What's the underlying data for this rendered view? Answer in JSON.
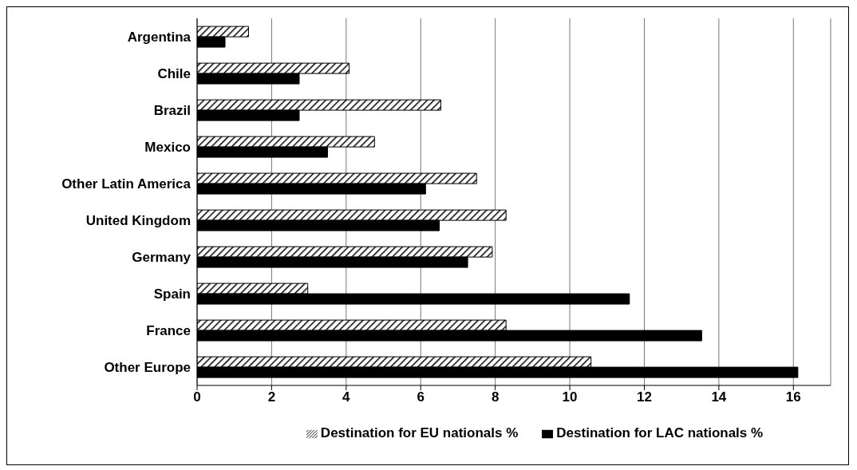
{
  "chart_data": {
    "type": "bar",
    "orientation": "horizontal",
    "categories": [
      "Argentina",
      "Chile",
      "Brazil",
      "Mexico",
      "Other Latin America",
      "United Kingdom",
      "Germany",
      "Spain",
      "France",
      "Other Europe"
    ],
    "series": [
      {
        "name": "Destination for LAC nationals %",
        "color": "#000000",
        "values": [
          0.75,
          2.74,
          2.74,
          3.5,
          6.13,
          6.5,
          7.26,
          11.6,
          13.54,
          16.12
        ]
      },
      {
        "name": "Destination for EU nationals %",
        "color": "#000000",
        "values": [
          1.38,
          4.08,
          6.54,
          4.76,
          7.5,
          8.29,
          7.92,
          2.97,
          8.29,
          10.57
        ]
      }
    ],
    "xlim": [
      0,
      17
    ],
    "xticks": [
      0,
      2,
      4,
      6,
      8,
      10,
      12,
      14,
      16
    ],
    "grid": "x",
    "legend": "bottom"
  }
}
